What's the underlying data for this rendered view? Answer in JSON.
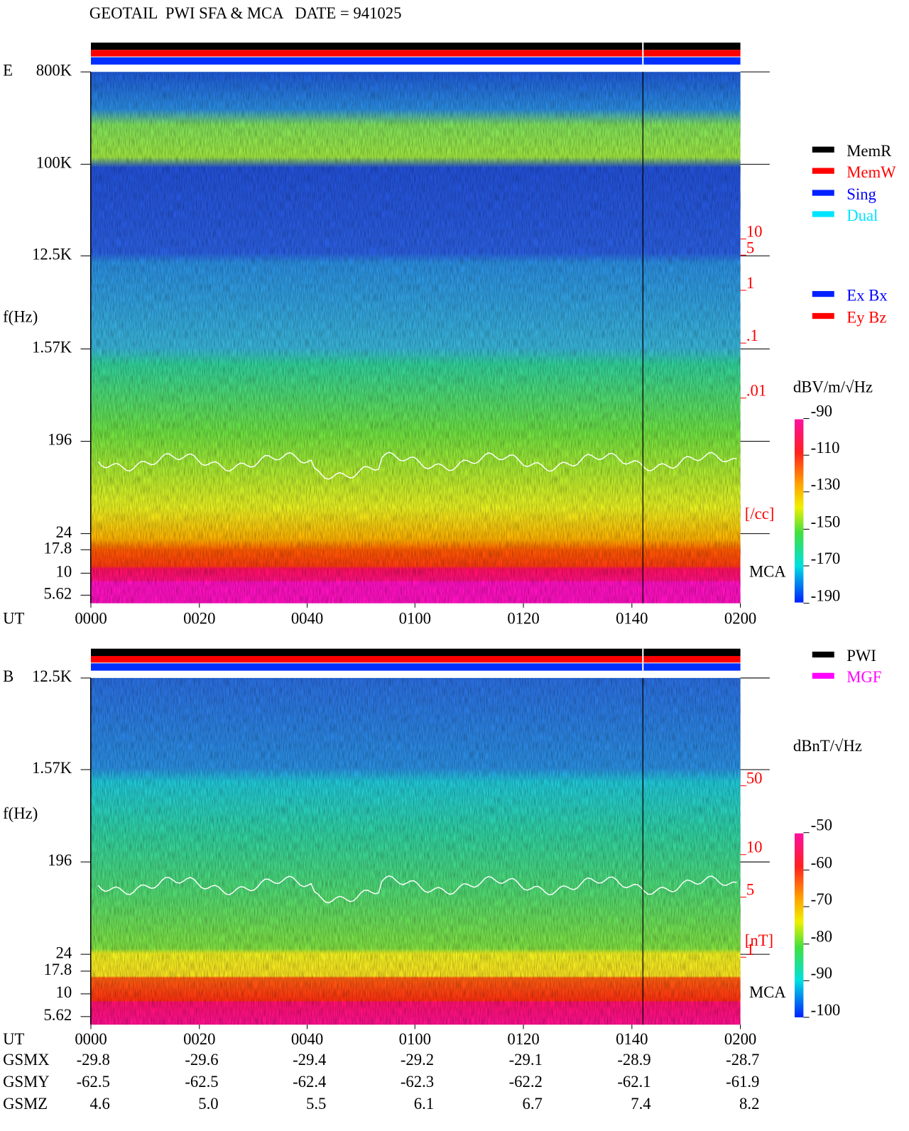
{
  "header": {
    "title": "GEOTAIL  PWI SFA & MCA   DATE = 941025"
  },
  "panels": [
    {
      "label": "E",
      "y_label": "f(Hz)",
      "y_ticks": [
        "800K",
        "100K",
        "12.5K",
        "1.57K",
        "196",
        "24",
        "17.8",
        "10",
        "5.62"
      ],
      "x_label": "UT",
      "x_ticks": [
        "0000",
        "0020",
        "0040",
        "0100",
        "0120",
        "0140",
        "0200"
      ],
      "density_ticks": [
        "10",
        "5",
        "1",
        ".1",
        ".01"
      ],
      "density_unit": "[/cc]",
      "mca": "MCA",
      "colorbar_unit": "dBV/m/√Hz",
      "colorbar_ticks": [
        "-90",
        "-110",
        "-130",
        "-150",
        "-170",
        "-190"
      ]
    },
    {
      "label": "B",
      "y_label": "f(Hz)",
      "y_ticks": [
        "12.5K",
        "1.57K",
        "196",
        "24",
        "17.8",
        "10",
        "5.62"
      ],
      "x_label": "UT",
      "x_ticks": [
        "0000",
        "0020",
        "0040",
        "0100",
        "0120",
        "0140",
        "0200"
      ],
      "density_ticks": [
        "50",
        "10",
        "5",
        "1"
      ],
      "density_unit": "[nT]",
      "mca": "MCA",
      "colorbar_unit": "dBnT/√Hz",
      "colorbar_ticks": [
        "-50",
        "-60",
        "-70",
        "-80",
        "-90",
        "-100"
      ]
    }
  ],
  "legends": {
    "mode": [
      "MemR",
      "MemW",
      "Sing",
      "Dual"
    ],
    "antenna": [
      "Ex Bx",
      "Ey Bz"
    ],
    "source": [
      "PWI",
      "MGF"
    ]
  },
  "orbit": [
    {
      "label": "GSMX",
      "values": [
        "-29.8",
        "-29.6",
        "-29.4",
        "-29.2",
        "-29.1",
        "-28.9",
        "-28.7"
      ]
    },
    {
      "label": "GSMY",
      "values": [
        "-62.5",
        "-62.5",
        "-62.4",
        "-62.3",
        "-62.2",
        "-62.1",
        "-61.9"
      ]
    },
    {
      "label": "GSMZ",
      "values": [
        "4.6",
        "5.0",
        "5.5",
        "6.1",
        "6.7",
        "7.4",
        "8.2"
      ]
    }
  ]
}
